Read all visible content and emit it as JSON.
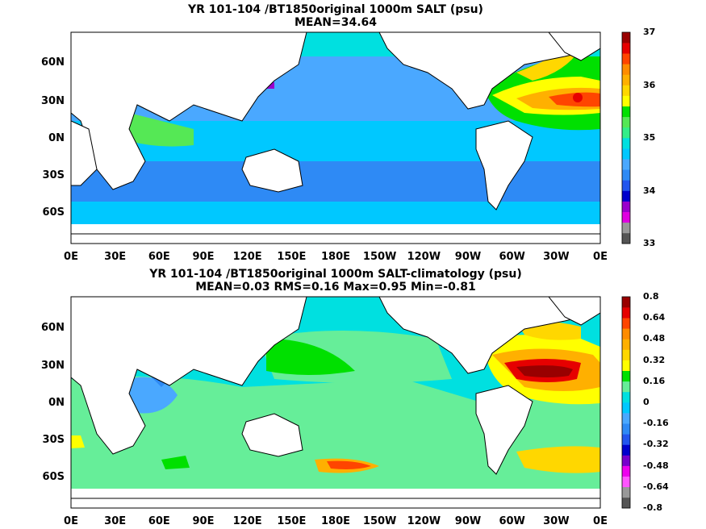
{
  "panels": [
    {
      "title": "YR 101-104 /BT1850original 1000m SALT (psu)",
      "subtitle": "MEAN=34.64",
      "colorbar": {
        "labels": [
          "37",
          "36",
          "35",
          "34",
          "33"
        ],
        "colors": [
          "#555555",
          "#999999",
          "#e000e0",
          "#9900cc",
          "#0000cc",
          "#2255ee",
          "#2e8af5",
          "#4aa8ff",
          "#00c8ff",
          "#00e0e0",
          "#33ee88",
          "#55e855",
          "#00e000",
          "#ffff00",
          "#ffd700",
          "#ffb000",
          "#ff8c00",
          "#ff4500",
          "#e60000",
          "#990000"
        ]
      }
    },
    {
      "title": "YR 101-104 /BT1850original 1000m SALT-climatology (psu)",
      "subtitle": "MEAN=0.03   RMS=0.16   Max=0.95   Min=-0.81",
      "colorbar": {
        "labels": [
          "0.8",
          "0.64",
          "0.48",
          "0.32",
          "0.16",
          "0",
          "-0.16",
          "-0.32",
          "-0.48",
          "-0.64",
          "-0.8"
        ],
        "colors": [
          "#555555",
          "#999999",
          "#ff55ff",
          "#ee00ee",
          "#7700cc",
          "#0000cc",
          "#2255ee",
          "#2e8af5",
          "#4aa8ff",
          "#00c8ff",
          "#00e0e0",
          "#66ee99",
          "#00e000",
          "#ffff00",
          "#ffd700",
          "#ffb000",
          "#ff8c00",
          "#ff4500",
          "#e60000",
          "#990000"
        ]
      }
    }
  ],
  "lat_labels": [
    "60N",
    "30N",
    "0N",
    "30S",
    "60S"
  ],
  "lon_labels": [
    "0E",
    "30E",
    "60E",
    "90E",
    "120E",
    "150E",
    "180E",
    "150W",
    "120W",
    "90W",
    "60W",
    "30W",
    "0E"
  ]
}
